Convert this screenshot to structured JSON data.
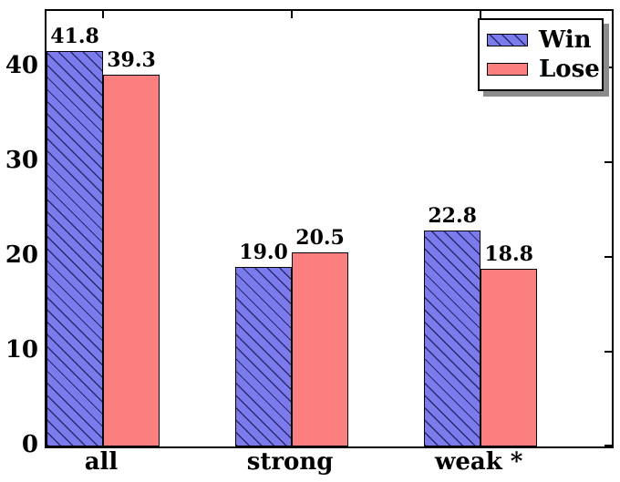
{
  "figure": {
    "background_color": "#ffffff",
    "frame_color": "#000000"
  },
  "chart_data": {
    "type": "bar",
    "title": "",
    "xlabel": "",
    "ylabel": "",
    "categories": [
      "all",
      "strong",
      "weak *"
    ],
    "series": [
      {
        "name": "Win",
        "values": [
          41.8,
          19.0,
          22.8
        ],
        "labels": [
          "41.8",
          "19.0",
          "22.8"
        ],
        "color": "#7b7bee",
        "hatch": "diagonal-forward",
        "hatch_color": "rgba(20,20,70,0.8)"
      },
      {
        "name": "Lose",
        "values": [
          39.3,
          20.5,
          18.8
        ],
        "labels": [
          "39.3",
          "20.5",
          "18.8"
        ],
        "color": "#fc7f7f",
        "hatch": "none",
        "hatch_color": ""
      }
    ],
    "yticks": [
      0,
      10,
      20,
      30,
      40
    ],
    "ytick_labels": [
      "0",
      "10",
      "20",
      "30",
      "40"
    ],
    "ylim": [
      0,
      46
    ],
    "grid": false,
    "bar_edge_color": "#000000",
    "legend": {
      "position": "upper-right",
      "labels": [
        "Win",
        "Lose"
      ],
      "shadow": true
    },
    "group_center_fracs": [
      0.1,
      0.434,
      0.768
    ],
    "bar_width_frac": 0.1
  }
}
